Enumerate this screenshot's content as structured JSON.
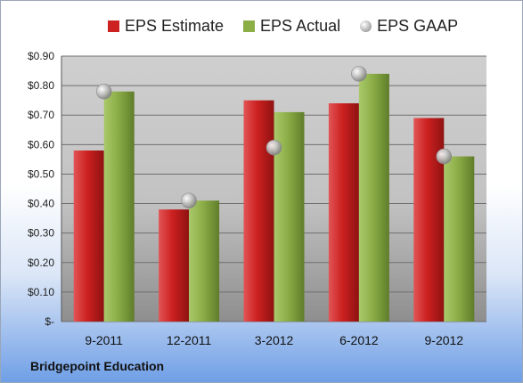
{
  "chart_data": {
    "type": "bar",
    "categories": [
      "9-2011",
      "12-2011",
      "3-2012",
      "6-2012",
      "9-2012"
    ],
    "series": [
      {
        "name": "EPS Estimate",
        "values": [
          0.58,
          0.38,
          0.75,
          0.74,
          0.69
        ],
        "color": "#cc2222",
        "kind": "bar"
      },
      {
        "name": "EPS Actual",
        "values": [
          0.78,
          0.41,
          0.71,
          0.84,
          0.56
        ],
        "color": "#8cae47",
        "kind": "bar"
      },
      {
        "name": "EPS GAAP",
        "values": [
          0.78,
          0.41,
          0.59,
          0.84,
          0.56
        ],
        "color": "#b8b8b8",
        "kind": "marker"
      }
    ],
    "yticks": [
      "$-",
      "$0.10",
      "$0.20",
      "$0.30",
      "$0.40",
      "$0.50",
      "$0.60",
      "$0.70",
      "$0.80",
      "$0.90"
    ],
    "ylim": [
      0,
      0.9
    ],
    "grid": true,
    "legend_position": "top"
  },
  "footer": {
    "company": "Bridgepoint Education"
  }
}
